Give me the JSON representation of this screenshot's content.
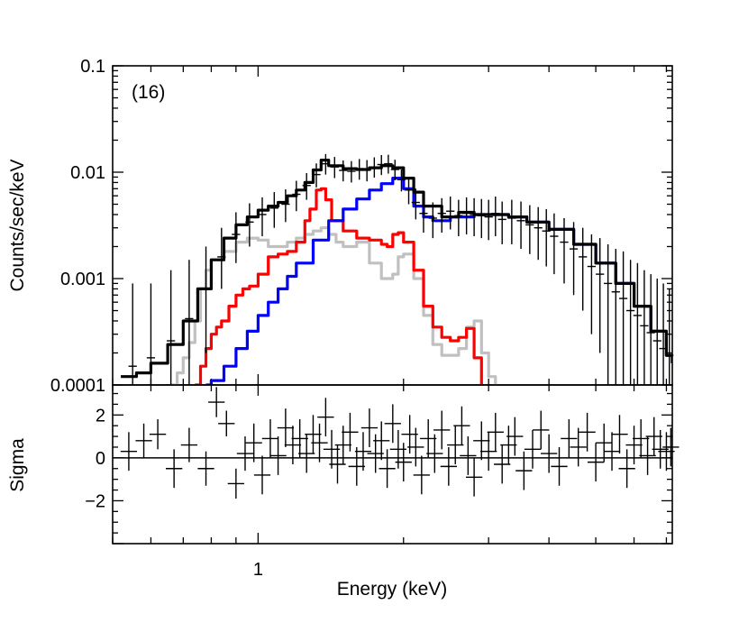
{
  "chart_data": {
    "type": "line",
    "panel_label": "(16)",
    "xlabel": "Energy (keV)",
    "x_scale": "log",
    "xlim": [
      0.5,
      7.2
    ],
    "x_tick_labels": [
      {
        "value": 1,
        "label": "1"
      }
    ],
    "top_panel": {
      "ylabel": "Counts/sec/keV",
      "y_scale": "log",
      "ylim": [
        0.0001,
        0.1
      ],
      "y_tick_labels": [
        {
          "value": 0.1,
          "label": "0.1"
        },
        {
          "value": 0.01,
          "label": "0.01"
        },
        {
          "value": 0.001,
          "label": "0.001"
        },
        {
          "value": 0.0001,
          "label": "0.0001"
        }
      ],
      "series": [
        {
          "name": "total model",
          "color": "#000000",
          "x": [
            0.52,
            0.56,
            0.6,
            0.65,
            0.7,
            0.75,
            0.8,
            0.85,
            0.9,
            0.95,
            1.0,
            1.05,
            1.1,
            1.15,
            1.2,
            1.25,
            1.3,
            1.35,
            1.4,
            1.5,
            1.6,
            1.7,
            1.8,
            1.9,
            2.0,
            2.1,
            2.2,
            2.4,
            2.6,
            2.8,
            3.0,
            3.3,
            3.6,
            4.0,
            4.5,
            5.0,
            5.5,
            6.0,
            6.5,
            7.0,
            7.2
          ],
          "y": [
            0.00012,
            0.00013,
            0.00016,
            0.00024,
            0.0004,
            0.0008,
            0.0015,
            0.0024,
            0.0032,
            0.0038,
            0.0044,
            0.0048,
            0.0052,
            0.006,
            0.0068,
            0.008,
            0.0105,
            0.013,
            0.0115,
            0.0108,
            0.0106,
            0.011,
            0.0115,
            0.011,
            0.0088,
            0.0065,
            0.0048,
            0.0038,
            0.0042,
            0.004,
            0.004,
            0.0038,
            0.0034,
            0.0029,
            0.0021,
            0.0014,
            0.0009,
            0.00055,
            0.00032,
            0.00019,
            0.00016
          ]
        },
        {
          "name": "red component",
          "color": "#ff0000",
          "x": [
            0.74,
            0.76,
            0.78,
            0.8,
            0.82,
            0.84,
            0.87,
            0.9,
            0.93,
            0.96,
            1.0,
            1.05,
            1.1,
            1.15,
            1.2,
            1.25,
            1.28,
            1.32,
            1.35,
            1.38,
            1.42,
            1.5,
            1.6,
            1.7,
            1.8,
            1.85,
            1.9,
            1.95,
            2.0,
            2.1,
            2.2,
            2.3,
            2.4,
            2.5,
            2.6,
            2.7,
            2.8,
            2.9
          ],
          "y": [
            0.0001,
            0.00015,
            0.00022,
            0.0003,
            0.00035,
            0.0004,
            0.00055,
            0.0007,
            0.0008,
            0.00085,
            0.0011,
            0.0016,
            0.0017,
            0.0018,
            0.0022,
            0.0035,
            0.0045,
            0.0068,
            0.007,
            0.0055,
            0.0035,
            0.0028,
            0.0024,
            0.0023,
            0.0021,
            0.002,
            0.0026,
            0.0027,
            0.0022,
            0.0012,
            0.00055,
            0.00035,
            0.00028,
            0.00026,
            0.00028,
            0.00034,
            0.00018,
            0.0001
          ]
        },
        {
          "name": "grey component",
          "color": "#c0c0c0",
          "x": [
            0.66,
            0.68,
            0.7,
            0.72,
            0.74,
            0.76,
            0.78,
            0.8,
            0.85,
            0.9,
            0.95,
            1.0,
            1.05,
            1.1,
            1.15,
            1.2,
            1.25,
            1.3,
            1.35,
            1.4,
            1.45,
            1.5,
            1.6,
            1.7,
            1.8,
            1.9,
            1.95,
            2.0,
            2.1,
            2.2,
            2.3,
            2.4,
            2.5,
            2.6,
            2.7,
            2.8,
            2.9,
            3.0,
            3.1
          ],
          "y": [
            0.0001,
            0.00013,
            0.00018,
            0.00025,
            0.0004,
            0.0008,
            0.0012,
            0.0015,
            0.0018,
            0.0022,
            0.0024,
            0.0023,
            0.002,
            0.002,
            0.0022,
            0.0024,
            0.0026,
            0.0028,
            0.003,
            0.0026,
            0.0022,
            0.002,
            0.0022,
            0.0014,
            0.001,
            0.0011,
            0.0016,
            0.0017,
            0.001,
            0.00045,
            0.00024,
            0.00019,
            0.00019,
            0.00022,
            0.00035,
            0.0004,
            0.0002,
            0.00012,
            0.0001
          ]
        },
        {
          "name": "blue component",
          "color": "#0000ff",
          "x": [
            0.78,
            0.8,
            0.85,
            0.9,
            0.95,
            1.0,
            1.05,
            1.1,
            1.15,
            1.2,
            1.3,
            1.4,
            1.5,
            1.6,
            1.7,
            1.8,
            1.9,
            2.0,
            2.1,
            2.2,
            2.3,
            2.5,
            2.8,
            3.0,
            3.3,
            3.6,
            4.0,
            4.5,
            5.0,
            5.5,
            6.0,
            6.5,
            7.0,
            7.2
          ],
          "y": [
            0.0001,
            0.00011,
            0.00015,
            0.00022,
            0.00032,
            0.00045,
            0.0006,
            0.0008,
            0.00105,
            0.0014,
            0.0023,
            0.0035,
            0.0045,
            0.0056,
            0.0068,
            0.0078,
            0.0088,
            0.007,
            0.0048,
            0.0038,
            0.0035,
            0.0038,
            0.004,
            0.004,
            0.0038,
            0.0034,
            0.0029,
            0.0021,
            0.0014,
            0.0009,
            0.00055,
            0.00032,
            0.00019,
            0.00016
          ]
        }
      ],
      "data_points": {
        "name": "observed counts",
        "color": "#000000",
        "x": [
          0.55,
          0.6,
          0.66,
          0.72,
          0.78,
          0.84,
          0.9,
          0.96,
          1.02,
          1.08,
          1.14,
          1.2,
          1.26,
          1.32,
          1.38,
          1.44,
          1.5,
          1.56,
          1.62,
          1.68,
          1.74,
          1.8,
          1.86,
          1.92,
          1.98,
          2.05,
          2.12,
          2.2,
          2.3,
          2.4,
          2.5,
          2.6,
          2.7,
          2.8,
          2.9,
          3.0,
          3.1,
          3.2,
          3.35,
          3.5,
          3.65,
          3.8,
          3.95,
          4.1,
          4.3,
          4.5,
          4.7,
          4.9,
          5.1,
          5.3,
          5.5,
          5.7,
          5.9,
          6.1,
          6.3,
          6.5,
          6.7,
          6.9,
          7.1
        ],
        "y": [
          0.00015,
          0.00018,
          0.00026,
          0.00042,
          0.0008,
          0.0016,
          0.0026,
          0.0034,
          0.004,
          0.0046,
          0.005,
          0.0062,
          0.0075,
          0.0095,
          0.012,
          0.0112,
          0.0104,
          0.0102,
          0.0108,
          0.0105,
          0.0112,
          0.0118,
          0.012,
          0.0106,
          0.0085,
          0.0068,
          0.0052,
          0.0041,
          0.0037,
          0.0041,
          0.0043,
          0.0039,
          0.0041,
          0.004,
          0.0039,
          0.0038,
          0.0041,
          0.0036,
          0.0037,
          0.0035,
          0.0032,
          0.003,
          0.0028,
          0.0025,
          0.0022,
          0.0019,
          0.0016,
          0.0013,
          0.0011,
          0.0009,
          0.00075,
          0.00065,
          0.0005,
          0.00045,
          0.00036,
          0.00031,
          0.00026,
          0.00022,
          0.00019
        ],
        "y_lower": [
          0.0001,
          0.0001,
          0.0001,
          0.0001,
          0.0002,
          0.0008,
          0.0014,
          0.002,
          0.0025,
          0.003,
          0.0034,
          0.0043,
          0.0055,
          0.0072,
          0.0095,
          0.0088,
          0.0082,
          0.008,
          0.0085,
          0.0082,
          0.0089,
          0.0094,
          0.0097,
          0.0084,
          0.0066,
          0.005,
          0.0036,
          0.0027,
          0.0024,
          0.0027,
          0.0029,
          0.0025,
          0.0026,
          0.0025,
          0.0024,
          0.0023,
          0.0025,
          0.0021,
          0.0021,
          0.0019,
          0.0017,
          0.0015,
          0.0013,
          0.0011,
          0.0009,
          0.0007,
          0.0005,
          0.0003,
          0.0002,
          0.0001,
          0.0001,
          0.0001,
          0.0001,
          0.0001,
          0.0001,
          0.0001,
          0.0001,
          0.0001,
          0.0001
        ],
        "y_upper": [
          0.0009,
          0.0009,
          0.0012,
          0.0015,
          0.002,
          0.003,
          0.0042,
          0.0051,
          0.0058,
          0.0065,
          0.0069,
          0.0083,
          0.0098,
          0.0121,
          0.0148,
          0.0139,
          0.0129,
          0.0127,
          0.0133,
          0.013,
          0.0138,
          0.0145,
          0.0146,
          0.0131,
          0.0106,
          0.0088,
          0.007,
          0.0057,
          0.0052,
          0.0057,
          0.0059,
          0.0055,
          0.0058,
          0.0057,
          0.0056,
          0.0055,
          0.0059,
          0.0053,
          0.0055,
          0.0053,
          0.0049,
          0.0047,
          0.0045,
          0.0041,
          0.0037,
          0.0034,
          0.003,
          0.0026,
          0.0024,
          0.0021,
          0.0019,
          0.0018,
          0.0015,
          0.0014,
          0.0012,
          0.0011,
          0.001,
          0.0009,
          0.0008
        ]
      }
    },
    "bottom_panel": {
      "ylabel": "Sigma",
      "y_scale": "linear",
      "ylim": [
        -4,
        3.4
      ],
      "y_tick_labels": [
        {
          "value": 2,
          "label": "2"
        },
        {
          "value": 0,
          "label": "0"
        },
        {
          "value": -2,
          "label": "−2"
        }
      ],
      "reference_line": 0,
      "residuals": {
        "x": [
          0.54,
          0.58,
          0.62,
          0.67,
          0.72,
          0.78,
          0.82,
          0.86,
          0.9,
          0.94,
          0.98,
          1.02,
          1.06,
          1.1,
          1.14,
          1.18,
          1.22,
          1.26,
          1.3,
          1.34,
          1.38,
          1.42,
          1.46,
          1.5,
          1.55,
          1.6,
          1.65,
          1.7,
          1.75,
          1.8,
          1.85,
          1.9,
          1.95,
          2.0,
          2.06,
          2.12,
          2.18,
          2.25,
          2.32,
          2.4,
          2.48,
          2.56,
          2.64,
          2.72,
          2.8,
          2.9,
          3.0,
          3.1,
          3.2,
          3.3,
          3.4,
          3.55,
          3.7,
          3.85,
          4.0,
          4.2,
          4.4,
          4.6,
          4.8,
          5.0,
          5.2,
          5.4,
          5.6,
          5.8,
          6.0,
          6.2,
          6.4,
          6.6,
          6.8,
          7.0,
          7.15
        ],
        "y": [
          0.3,
          0.8,
          1.1,
          -0.5,
          0.6,
          -0.5,
          2.6,
          1.6,
          -1.2,
          0.2,
          0.7,
          -0.8,
          0.9,
          0.1,
          1.4,
          0.6,
          0.9,
          0.2,
          1.1,
          0.7,
          1.9,
          0.4,
          -0.3,
          0.6,
          1.2,
          -0.4,
          0.3,
          1.4,
          0.2,
          0.8,
          -0.5,
          1.6,
          0.4,
          -0.2,
          1.1,
          0.5,
          -0.8,
          0.9,
          0.2,
          1.3,
          -0.4,
          0.6,
          1.5,
          0.1,
          -0.9,
          0.8,
          0.3,
          1.2,
          -0.3,
          0.6,
          1.0,
          -0.6,
          0.4,
          1.3,
          0.2,
          -0.4,
          0.9,
          0.5,
          1.2,
          -0.2,
          0.7,
          0.3,
          1.1,
          -0.5,
          0.6,
          0.9,
          0.1,
          1.0,
          0.4,
          0.3,
          0.5
        ],
        "err": [
          0.9,
          0.8,
          0.7,
          0.9,
          0.8,
          0.8,
          0.7,
          0.6,
          0.7,
          0.8,
          0.9,
          0.9,
          0.9,
          0.9,
          0.9,
          0.9,
          0.9,
          0.9,
          0.9,
          0.9,
          0.9,
          0.9,
          0.9,
          0.9,
          0.9,
          0.9,
          0.9,
          0.9,
          0.9,
          0.9,
          0.9,
          0.9,
          0.9,
          0.9,
          0.9,
          0.9,
          0.9,
          0.9,
          0.9,
          0.9,
          0.9,
          0.9,
          0.9,
          0.9,
          0.9,
          0.9,
          0.9,
          0.9,
          0.9,
          0.9,
          0.9,
          0.9,
          0.9,
          0.9,
          0.9,
          0.9,
          0.9,
          0.9,
          0.9,
          0.9,
          0.9,
          0.9,
          0.9,
          0.9,
          0.9,
          0.9,
          0.9,
          0.9,
          0.9,
          0.9,
          0.9
        ]
      }
    }
  }
}
